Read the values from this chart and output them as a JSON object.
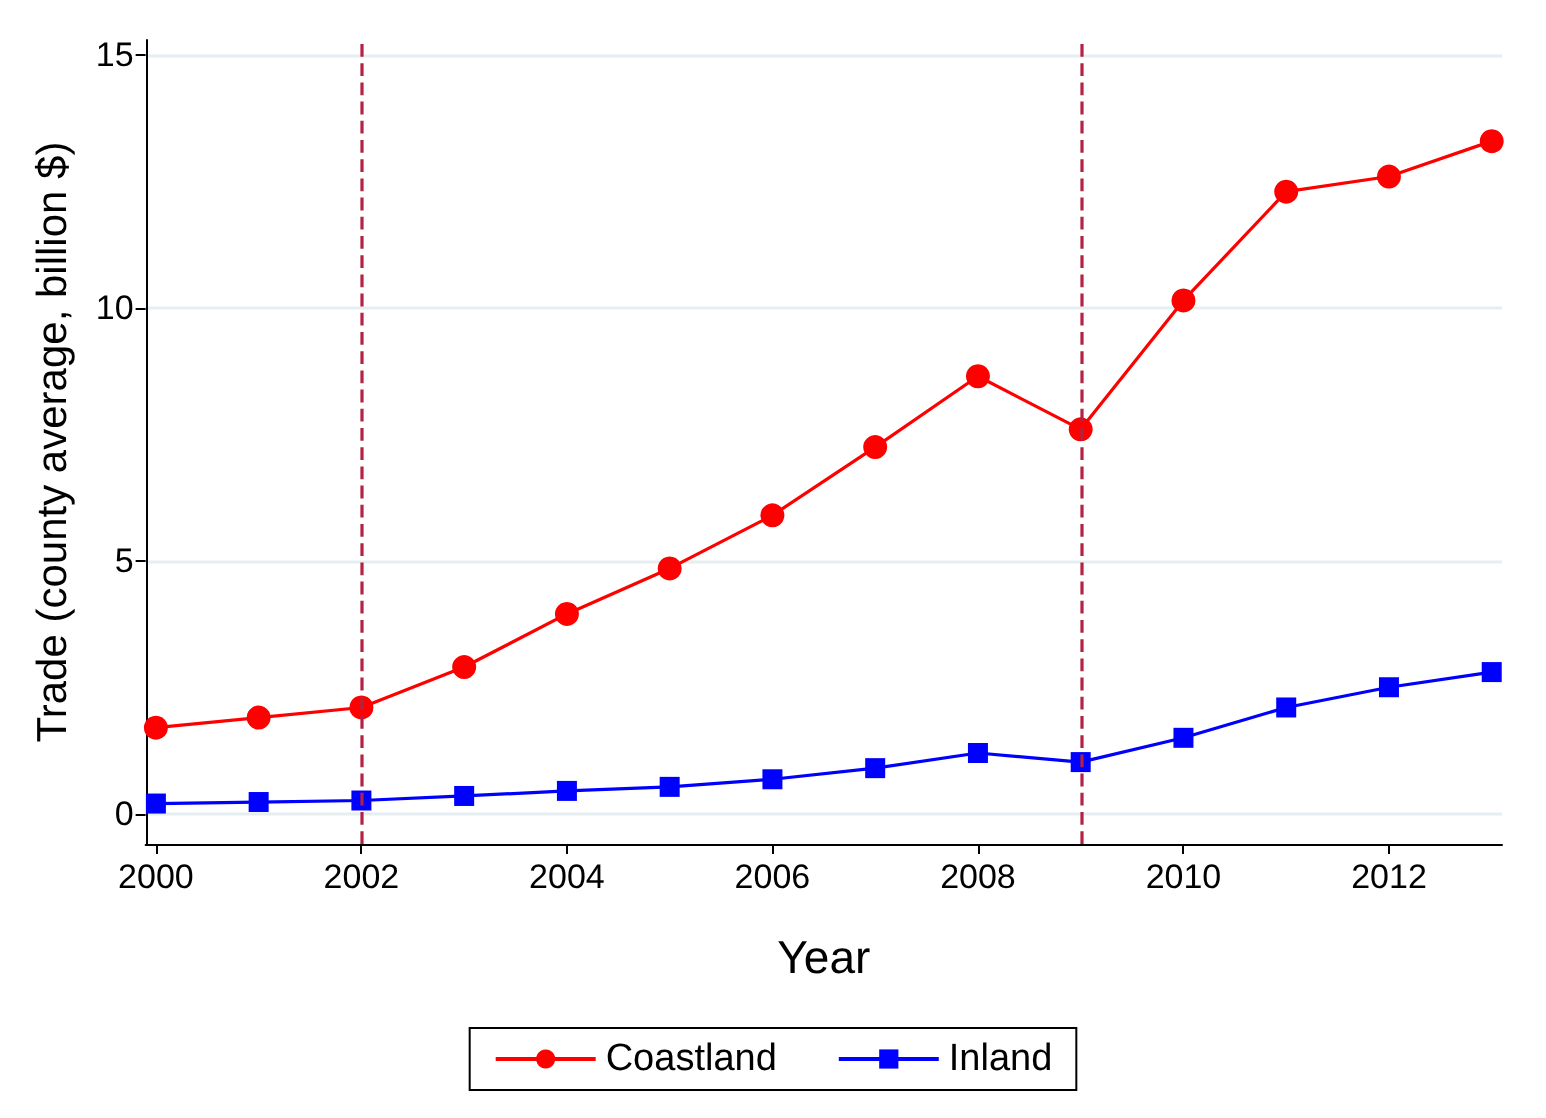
{
  "chart_data": {
    "type": "line",
    "xlabel": "Year",
    "ylabel": "Trade (county average, billion $)",
    "x": [
      2000,
      2001,
      2002,
      2003,
      2004,
      2005,
      2006,
      2007,
      2008,
      2009,
      2010,
      2011,
      2012,
      2013
    ],
    "series": [
      {
        "name": "Coastland",
        "color": "#ff0000",
        "marker": "circle",
        "values": [
          1.7,
          1.9,
          2.1,
          2.9,
          3.95,
          4.85,
          5.9,
          7.25,
          8.65,
          7.6,
          10.15,
          12.3,
          12.6,
          13.3
        ]
      },
      {
        "name": "Inland",
        "color": "#0000ff",
        "marker": "square",
        "values": [
          0.2,
          0.23,
          0.26,
          0.35,
          0.45,
          0.53,
          0.68,
          0.9,
          1.2,
          1.02,
          1.5,
          2.1,
          2.5,
          2.8
        ]
      }
    ],
    "xlim": [
      1999.9,
      2013.1
    ],
    "xticks": [
      2000,
      2002,
      2004,
      2006,
      2008,
      2010,
      2012
    ],
    "ylim": [
      -0.6,
      15.3
    ],
    "yticks": [
      0,
      5,
      10,
      15
    ],
    "ref_lines": [
      {
        "axis": "x",
        "value": 2002,
        "color": "#b22245",
        "line_style": "dashed"
      },
      {
        "axis": "x",
        "value": 2009,
        "color": "#b22245",
        "line_style": "dashed"
      }
    ],
    "grid": "y",
    "legend": "bottom",
    "line_style": "solid"
  }
}
